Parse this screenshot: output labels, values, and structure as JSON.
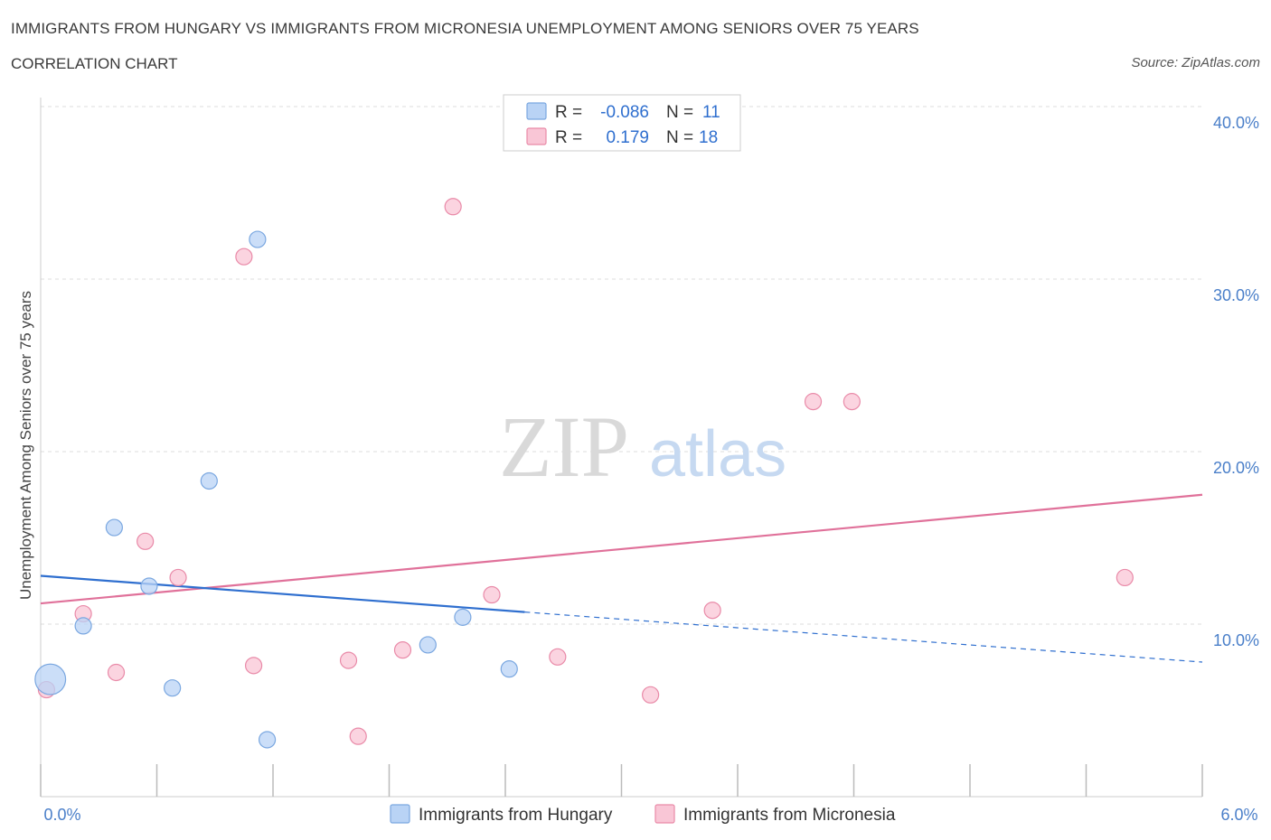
{
  "header": {
    "title": "IMMIGRANTS FROM HUNGARY VS IMMIGRANTS FROM MICRONESIA UNEMPLOYMENT AMONG SENIORS OVER 75 YEARS",
    "subtitle": "CORRELATION CHART",
    "source": "Source: ZipAtlas.com"
  },
  "watermark": {
    "zip": "ZIP",
    "atlas": "atlas"
  },
  "colors": {
    "hungary_fill": "#b9d3f5",
    "hungary_stroke": "#7aa7e0",
    "hungary_line": "#2f6fcf",
    "micronesia_fill": "#f9c6d6",
    "micronesia_stroke": "#e98aa8",
    "micronesia_line": "#e0719a",
    "grid": "#dddddd",
    "tick_text": "#4a7fc9"
  },
  "legend": {
    "rows": [
      {
        "r_label": "R =",
        "r_value": "-0.086",
        "n_label": "N =",
        "n_value": "11"
      },
      {
        "r_label": "R =",
        "r_value": "0.179",
        "n_label": "N =",
        "n_value": "18"
      }
    ]
  },
  "chart_data": {
    "type": "scatter",
    "title": "IMMIGRANTS FROM HUNGARY VS IMMIGRANTS FROM MICRONESIA UNEMPLOYMENT AMONG SENIORS OVER 75 YEARS",
    "ylabel": "Unemployment Among Seniors over 75 years",
    "xlabel": "",
    "xlim": [
      0,
      6
    ],
    "ylim": [
      0,
      40
    ],
    "x_tick_labels": [
      "0.0%",
      "6.0%"
    ],
    "y_ticks": [
      10,
      20,
      30,
      40
    ],
    "y_tick_labels": [
      "10.0%",
      "20.0%",
      "30.0%",
      "40.0%"
    ],
    "grid": true,
    "legend_position": "bottom-center",
    "series": [
      {
        "name": "Immigrants from Hungary",
        "x": [
          0.05,
          0.22,
          0.38,
          0.56,
          0.68,
          0.87,
          1.12,
          1.17,
          2.0,
          2.18,
          2.42
        ],
        "y": [
          6.8,
          9.9,
          15.6,
          12.2,
          6.3,
          18.3,
          32.3,
          3.3,
          8.8,
          10.4,
          7.4
        ],
        "size": [
          3,
          1,
          1,
          1,
          1,
          1,
          1,
          1,
          1,
          1,
          1
        ],
        "trend": {
          "x0": 0,
          "y0": 12.8,
          "x1": 2.5,
          "y1": 10.7,
          "dashed_to_x": 6,
          "dashed_to_y": 7.8
        }
      },
      {
        "name": "Immigrants from Micronesia",
        "x": [
          0.03,
          0.22,
          0.39,
          0.54,
          0.71,
          1.05,
          1.1,
          1.59,
          1.64,
          1.87,
          2.13,
          2.33,
          2.67,
          3.15,
          3.47,
          3.99,
          4.19,
          5.6
        ],
        "y": [
          6.2,
          10.6,
          7.2,
          14.8,
          12.7,
          31.3,
          7.6,
          7.9,
          3.5,
          8.5,
          34.2,
          11.7,
          8.1,
          5.9,
          10.8,
          22.9,
          22.9,
          12.7
        ],
        "size": [
          1,
          1,
          1,
          1,
          1,
          1,
          1,
          1,
          1,
          1,
          1,
          1,
          1,
          1,
          1,
          1,
          1,
          1
        ],
        "trend": {
          "x0": 0,
          "y0": 11.2,
          "x1": 6,
          "y1": 17.5
        }
      }
    ]
  }
}
